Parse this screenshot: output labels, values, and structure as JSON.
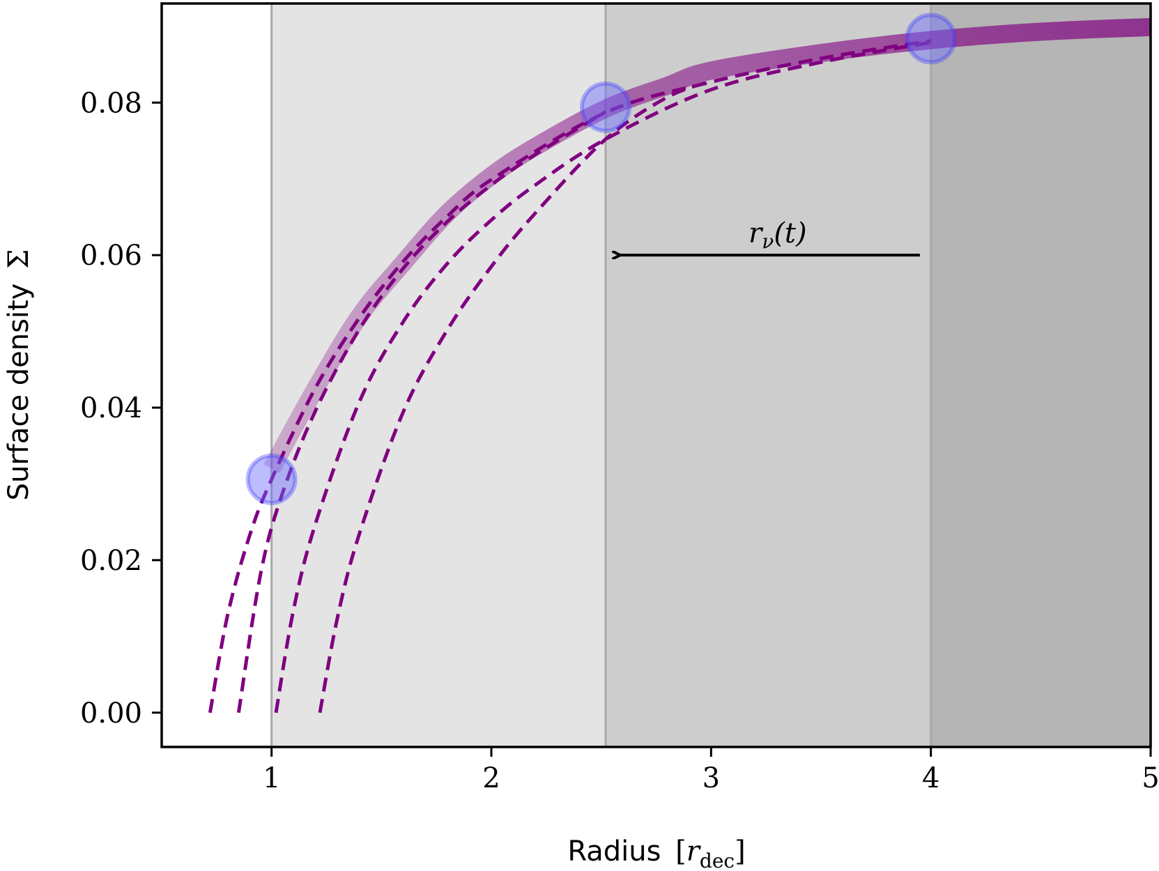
{
  "chart_data": {
    "type": "line",
    "xlim": [
      0.5,
      5
    ],
    "ylim": [
      -0.0045,
      0.093
    ],
    "x_ticks": [
      "1",
      "2",
      "3",
      "4",
      "5"
    ],
    "y_ticks": [
      "0.00",
      "0.02",
      "0.04",
      "0.06",
      "0.08"
    ],
    "xlabel": {
      "text": "Radius",
      "math_base": "r",
      "math_sub": "dec"
    },
    "ylabel": {
      "text": "Surface density",
      "symbol": "Σ"
    },
    "shaded_regions": [
      {
        "x0": 1.0,
        "x1": 2.52,
        "color": "#e4e4e4"
      },
      {
        "x0": 2.52,
        "x1": 4.0,
        "color": "#cdcdcd"
      },
      {
        "x0": 4.0,
        "x1": 5.0,
        "color": "#b5b5b5"
      }
    ],
    "vertical_lines": [
      1.0,
      2.52,
      4.0
    ],
    "colors": {
      "curve": "#800080",
      "marker": "#6b6bff",
      "marker_edge": "#3a3aff"
    },
    "main_curve": {
      "x": [
        1.0,
        1.2,
        1.4,
        1.6,
        1.8,
        2.0,
        2.2,
        2.52,
        2.8,
        3.0,
        3.5,
        4.0,
        4.5,
        5.0
      ],
      "y": [
        0.032,
        0.0425,
        0.052,
        0.059,
        0.0655,
        0.0704,
        0.0742,
        0.0792,
        0.0822,
        0.0842,
        0.0865,
        0.0882,
        0.0893,
        0.0899
      ]
    },
    "dashed_curves": [
      {
        "x": [
          0.72,
          0.8,
          0.9,
          1.0,
          1.2,
          1.4,
          1.6,
          1.8,
          2.0,
          2.52,
          3.0,
          3.5,
          4.0
        ],
        "y": [
          0.0,
          0.0128,
          0.0232,
          0.0306,
          0.0426,
          0.0518,
          0.0592,
          0.0651,
          0.0699,
          0.0787,
          0.0827,
          0.0858,
          0.0881
        ]
      },
      {
        "x": [
          0.85,
          0.95,
          1.05,
          1.2,
          1.4,
          1.6,
          1.8,
          2.0,
          2.2,
          2.52
        ],
        "y": [
          0.0,
          0.0182,
          0.0288,
          0.0396,
          0.0503,
          0.0583,
          0.0644,
          0.0692,
          0.0732,
          0.0788
        ]
      },
      {
        "x": [
          1.02,
          1.1,
          1.2,
          1.4,
          1.6,
          1.8,
          2.0,
          2.2,
          2.52,
          3.0,
          3.5,
          4.0
        ],
        "y": [
          0.0,
          0.0135,
          0.0248,
          0.0408,
          0.0513,
          0.0589,
          0.0646,
          0.0692,
          0.0752,
          0.0817,
          0.0853,
          0.0879
        ]
      },
      {
        "x": [
          1.22,
          1.3,
          1.4,
          1.6,
          1.8,
          2.0,
          2.2,
          2.52,
          2.8,
          3.0
        ],
        "y": [
          0.0,
          0.0125,
          0.0235,
          0.0395,
          0.0502,
          0.0585,
          0.0655,
          0.0752,
          0.0807,
          0.0828
        ]
      }
    ],
    "markers": [
      {
        "x": 1.0,
        "y": 0.0306
      },
      {
        "x": 2.52,
        "y": 0.0794
      },
      {
        "x": 4.0,
        "y": 0.0884
      }
    ],
    "annotation": {
      "label_base": "r",
      "label_sub": "ν",
      "label_arg": "(t)",
      "arrow_from": {
        "x": 3.95,
        "y": 0.06
      },
      "arrow_to": {
        "x": 2.58,
        "y": 0.06
      }
    }
  }
}
